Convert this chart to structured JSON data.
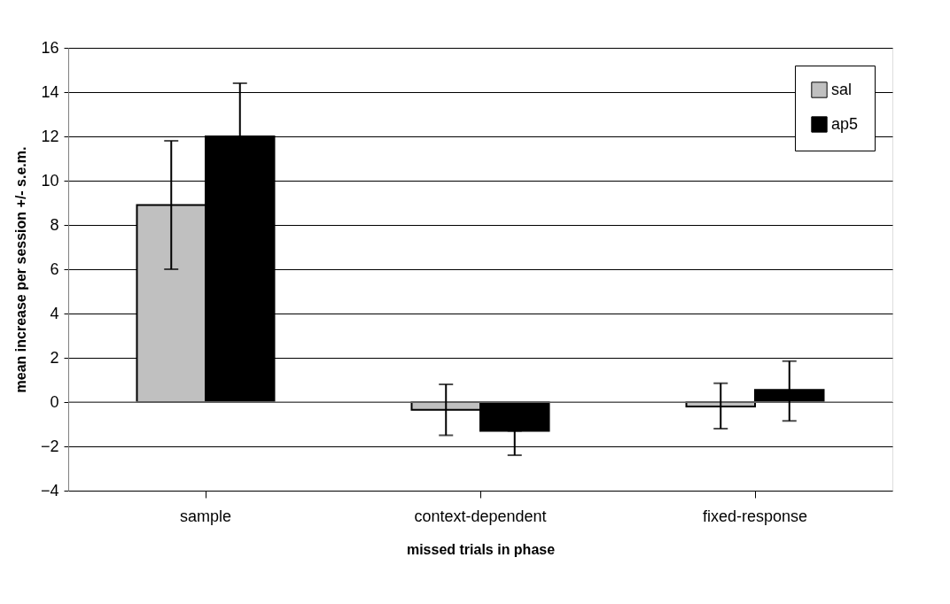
{
  "chart_data": {
    "type": "bar",
    "xlabel": "missed trials in phase",
    "ylabel": "mean increase per session +/- s.e.m.",
    "categories": [
      "sample",
      "context-dependent",
      "fixed-response"
    ],
    "series": [
      {
        "name": "sal",
        "color": "#c0c0c0",
        "values": [
          8.9,
          -0.35,
          -0.2
        ],
        "errors": [
          [
            6.0,
            11.8
          ],
          [
            -1.5,
            0.8
          ],
          [
            -1.2,
            0.85
          ]
        ]
      },
      {
        "name": "ap5",
        "color": "#000000",
        "values": [
          12.0,
          -1.3,
          0.55
        ],
        "errors": [
          [
            12.0,
            14.4
          ],
          [
            -2.4,
            -1.3
          ],
          [
            -0.85,
            1.85
          ]
        ]
      }
    ],
    "ylim": [
      -4,
      16
    ],
    "yticks": [
      -4,
      -2,
      0,
      2,
      4,
      6,
      8,
      10,
      12,
      14,
      16
    ],
    "grid": "y",
    "legend": "top right"
  }
}
